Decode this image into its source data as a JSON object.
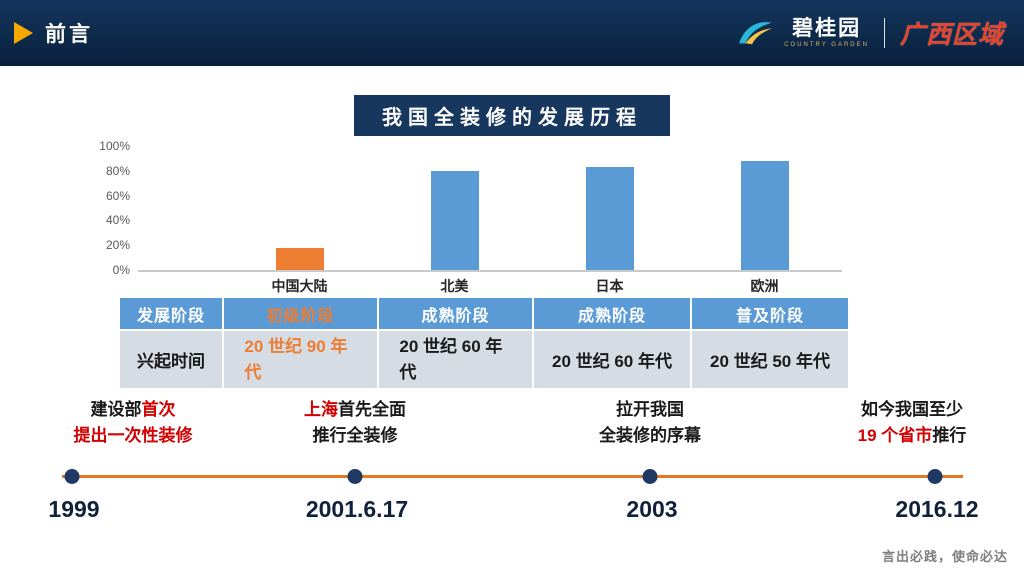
{
  "header": {
    "section_title": "前言",
    "brand_name": "碧桂园",
    "brand_en": "COUNTRY GARDEN",
    "region": "广西区域"
  },
  "chart_data": {
    "type": "bar",
    "title": "我国全装修的发展历程",
    "categories": [
      "中国大陆",
      "北美",
      "日本",
      "欧洲"
    ],
    "values": [
      18,
      80,
      83,
      88
    ],
    "unit": "%",
    "bar_colors": [
      "#ED7D31",
      "#5B9BD5",
      "#5B9BD5",
      "#5B9BD5"
    ],
    "yticks": [
      "100%",
      "80%",
      "60%",
      "40%",
      "20%",
      "0%"
    ],
    "ylim": [
      0,
      100
    ],
    "grid": false,
    "legend": false
  },
  "table": {
    "row1_label": "发展阶段",
    "row1_values": [
      "初级阶段",
      "成熟阶段",
      "成熟阶段",
      "普及阶段"
    ],
    "row2_label": "兴起时间",
    "row2_values": [
      "20 世纪 90 年代",
      "20 世纪 60 年代",
      "20 世纪 60 年代",
      "20 世纪 50 年代"
    ]
  },
  "timeline": {
    "events": [
      {
        "year": "1999",
        "line1": [
          {
            "text": "建设部",
            "red": false
          },
          {
            "text": "首次",
            "red": true
          }
        ],
        "line2": [
          {
            "text": "提出一次性装修",
            "red": true
          }
        ]
      },
      {
        "year": "2001.6.17",
        "line1": [
          {
            "text": "上海",
            "red": true
          },
          {
            "text": "首先全面",
            "red": false
          }
        ],
        "line2": [
          {
            "text": "推行全装修",
            "red": false
          }
        ]
      },
      {
        "year": "2003",
        "line1": [
          {
            "text": "拉开我国",
            "red": false
          }
        ],
        "line2": [
          {
            "text": "全装修的序幕",
            "red": false
          }
        ]
      },
      {
        "year": "2016.12",
        "line1": [
          {
            "text": "如今我国至少",
            "red": false
          }
        ],
        "line2": [
          {
            "text": "19 个省市",
            "red": true
          },
          {
            "text": "推行",
            "red": false
          }
        ]
      }
    ]
  },
  "footer": {
    "slogan": "言出必践，使命必达"
  },
  "colors": {
    "header-navy": "#0E2A4A",
    "badge-navy": "#17375E",
    "bar-blue": "#5B9BD5",
    "bar-orange": "#ED7D31",
    "table-header-blue": "#5B9BD5",
    "table-row-gray": "#D6DCE4",
    "highlight-red": "#D20000",
    "timeline-orange": "#E87722",
    "dot-navy": "#1F3864",
    "region-red": "#E8432C",
    "brand-gold": "#D9B564"
  }
}
